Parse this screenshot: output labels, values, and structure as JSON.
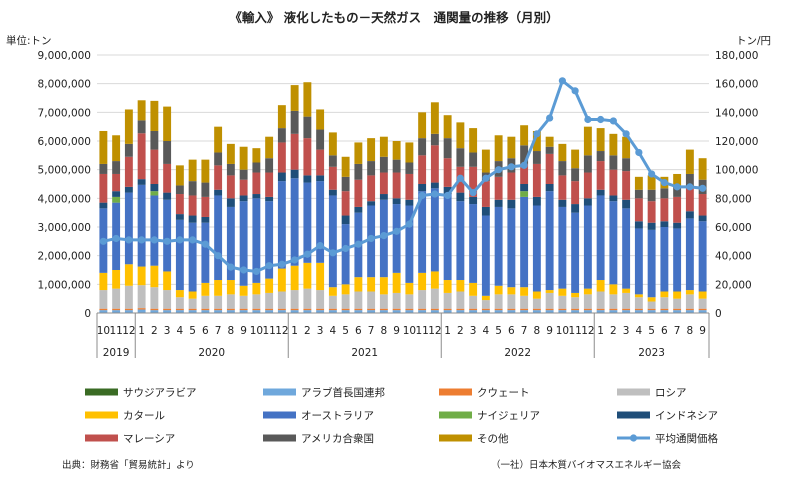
{
  "chart_data": {
    "type": "bar",
    "title": "《輸入》 液化したもの－天然ガス　通関量の推移（月別）",
    "y_left_label": "単位:トン",
    "y_right_label": "トン/円",
    "ylim_left": [
      0,
      9000000
    ],
    "ylim_right": [
      0,
      180000
    ],
    "y_left_ticks": [
      "0",
      "1,000,000",
      "2,000,000",
      "3,000,000",
      "4,000,000",
      "5,000,000",
      "6,000,000",
      "7,000,000",
      "8,000,000",
      "9,000,000"
    ],
    "y_right_ticks": [
      "0",
      "20,000",
      "40,000",
      "60,000",
      "80,000",
      "100,000",
      "120,000",
      "140,000",
      "160,000",
      "180,000"
    ],
    "categories": [
      "2019-10",
      "2019-11",
      "2019-12",
      "2020-01",
      "2020-02",
      "2020-03",
      "2020-04",
      "2020-05",
      "2020-06",
      "2020-07",
      "2020-08",
      "2020-09",
      "2020-10",
      "2020-11",
      "2020-12",
      "2021-01",
      "2021-02",
      "2021-03",
      "2021-04",
      "2021-05",
      "2021-06",
      "2021-07",
      "2021-08",
      "2021-09",
      "2021-10",
      "2021-11",
      "2021-12",
      "2022-01",
      "2022-02",
      "2022-03",
      "2022-04",
      "2022-05",
      "2022-06",
      "2022-07",
      "2022-08",
      "2022-09",
      "2022-10",
      "2022-11",
      "2022-12",
      "2023-01",
      "2023-02",
      "2023-03",
      "2023-04",
      "2023-05",
      "2023-06",
      "2023-07",
      "2023-08",
      "2023-09"
    ],
    "month_labels": [
      "10",
      "11",
      "12",
      "1",
      "2",
      "3",
      "4",
      "5",
      "6",
      "7",
      "8",
      "9",
      "10",
      "11",
      "12",
      "1",
      "2",
      "3",
      "4",
      "5",
      "6",
      "7",
      "8",
      "9",
      "10",
      "11",
      "12",
      "1",
      "2",
      "3",
      "4",
      "5",
      "6",
      "7",
      "8",
      "9",
      "10",
      "11",
      "12",
      "1",
      "2",
      "3",
      "4",
      "5",
      "6",
      "7",
      "8",
      "9"
    ],
    "year_groups": [
      {
        "label": "2019",
        "start": 0,
        "end": 2
      },
      {
        "label": "2020",
        "start": 3,
        "end": 14
      },
      {
        "label": "2021",
        "start": 15,
        "end": 26
      },
      {
        "label": "2022",
        "start": 27,
        "end": 38
      },
      {
        "label": "2023",
        "start": 39,
        "end": 47
      }
    ],
    "series": [
      {
        "name": "サウジアラビア",
        "color": "#3a6b24",
        "axis": "left",
        "values": [
          0,
          0,
          0,
          0,
          0,
          0,
          0,
          0,
          0,
          0,
          0,
          0,
          0,
          0,
          0,
          0,
          0,
          0,
          0,
          0,
          0,
          0,
          0,
          0,
          0,
          0,
          0,
          0,
          0,
          0,
          0,
          0,
          0,
          0,
          0,
          0,
          0,
          0,
          0,
          0,
          0,
          0,
          0,
          0,
          0,
          0,
          0,
          0
        ]
      },
      {
        "name": "アラブ首長国連邦",
        "color": "#6fa8dc",
        "axis": "left",
        "values": [
          100000,
          100000,
          100000,
          120000,
          100000,
          100000,
          100000,
          100000,
          100000,
          100000,
          100000,
          100000,
          100000,
          100000,
          100000,
          100000,
          100000,
          100000,
          100000,
          100000,
          100000,
          100000,
          100000,
          100000,
          100000,
          100000,
          100000,
          100000,
          100000,
          100000,
          100000,
          100000,
          100000,
          100000,
          100000,
          100000,
          100000,
          100000,
          100000,
          100000,
          100000,
          100000,
          100000,
          100000,
          100000,
          100000,
          100000,
          100000
        ]
      },
      {
        "name": "クウェート",
        "color": "#ed7d31",
        "axis": "left",
        "values": [
          50000,
          50000,
          50000,
          50000,
          50000,
          50000,
          50000,
          50000,
          50000,
          50000,
          50000,
          50000,
          50000,
          50000,
          50000,
          50000,
          50000,
          50000,
          50000,
          50000,
          50000,
          50000,
          50000,
          50000,
          50000,
          50000,
          50000,
          50000,
          50000,
          50000,
          50000,
          50000,
          50000,
          50000,
          50000,
          50000,
          50000,
          50000,
          50000,
          50000,
          50000,
          50000,
          50000,
          50000,
          50000,
          50000,
          50000,
          50000
        ]
      },
      {
        "name": "ロシア",
        "color": "#bfbfbf",
        "axis": "left",
        "values": [
          650000,
          700000,
          800000,
          800000,
          750000,
          650000,
          400000,
          350000,
          450000,
          450000,
          500000,
          450000,
          500000,
          550000,
          600000,
          650000,
          700000,
          650000,
          450000,
          500000,
          600000,
          600000,
          500000,
          550000,
          500000,
          650000,
          700000,
          550000,
          600000,
          450000,
          300000,
          500000,
          500000,
          450000,
          350000,
          550000,
          450000,
          400000,
          500000,
          600000,
          500000,
          550000,
          400000,
          250000,
          400000,
          350000,
          500000,
          350000
        ]
      },
      {
        "name": "カタール",
        "color": "#ffc000",
        "axis": "left",
        "values": [
          600000,
          650000,
          750000,
          650000,
          750000,
          650000,
          250000,
          250000,
          450000,
          550000,
          500000,
          350000,
          400000,
          500000,
          800000,
          850000,
          900000,
          950000,
          300000,
          350000,
          500000,
          500000,
          600000,
          700000,
          400000,
          600000,
          600000,
          450000,
          400000,
          450000,
          150000,
          300000,
          250000,
          300000,
          250000,
          100000,
          250000,
          150000,
          200000,
          400000,
          350000,
          150000,
          100000,
          150000,
          200000,
          250000,
          150000,
          250000
        ]
      },
      {
        "name": "オーストラリア",
        "color": "#4472c4",
        "axis": "left",
        "values": [
          2250000,
          2350000,
          2500000,
          2850000,
          2450000,
          2500000,
          2450000,
          2400000,
          2100000,
          2950000,
          2550000,
          2950000,
          2950000,
          2700000,
          3050000,
          3050000,
          2800000,
          2850000,
          3200000,
          2100000,
          2250000,
          2500000,
          2700000,
          2400000,
          2700000,
          2850000,
          2900000,
          3000000,
          2750000,
          2750000,
          2800000,
          2750000,
          2750000,
          3150000,
          3000000,
          3450000,
          2850000,
          2800000,
          2900000,
          2950000,
          2900000,
          2800000,
          2300000,
          2350000,
          2250000,
          2200000,
          2500000,
          2450000
        ]
      },
      {
        "name": "ナイジェリア",
        "color": "#70ad47",
        "axis": "left",
        "values": [
          0,
          200000,
          0,
          0,
          150000,
          0,
          0,
          0,
          0,
          0,
          0,
          0,
          0,
          0,
          0,
          0,
          0,
          0,
          0,
          0,
          0,
          0,
          0,
          0,
          0,
          0,
          0,
          0,
          0,
          0,
          0,
          0,
          0,
          200000,
          0,
          0,
          0,
          0,
          0,
          0,
          0,
          0,
          0,
          0,
          0,
          0,
          0,
          0
        ]
      },
      {
        "name": "インドネシア",
        "color": "#1f4e79",
        "axis": "left",
        "values": [
          200000,
          200000,
          200000,
          200000,
          250000,
          250000,
          200000,
          250000,
          200000,
          200000,
          300000,
          200000,
          150000,
          150000,
          300000,
          300000,
          250000,
          200000,
          200000,
          300000,
          200000,
          150000,
          200000,
          200000,
          200000,
          250000,
          200000,
          250000,
          300000,
          250000,
          300000,
          250000,
          300000,
          250000,
          300000,
          250000,
          250000,
          300000,
          250000,
          200000,
          200000,
          300000,
          250000,
          250000,
          200000,
          200000,
          250000,
          200000
        ]
      },
      {
        "name": "マレーシア",
        "color": "#c0504d",
        "axis": "left",
        "values": [
          1000000,
          600000,
          1050000,
          1600000,
          1200000,
          1000000,
          700000,
          700000,
          700000,
          850000,
          800000,
          550000,
          750000,
          850000,
          1050000,
          1250000,
          1300000,
          900000,
          800000,
          850000,
          950000,
          900000,
          750000,
          900000,
          900000,
          1000000,
          1300000,
          1000000,
          900000,
          1050000,
          900000,
          800000,
          950000,
          700000,
          1150000,
          1050000,
          850000,
          800000,
          900000,
          1000000,
          900000,
          1000000,
          800000,
          750000,
          800000,
          900000,
          850000,
          750000
        ]
      },
      {
        "name": "アメリカ合衆国",
        "color": "#595959",
        "axis": "left",
        "values": [
          350000,
          450000,
          450000,
          450000,
          650000,
          800000,
          300000,
          500000,
          500000,
          450000,
          400000,
          350000,
          350000,
          500000,
          500000,
          800000,
          750000,
          700000,
          400000,
          500000,
          550000,
          500000,
          550000,
          450000,
          400000,
          600000,
          400000,
          700000,
          650000,
          500000,
          300000,
          550000,
          500000,
          650000,
          450000,
          250000,
          500000,
          450000,
          600000,
          350000,
          500000,
          450000,
          300000,
          400000,
          350000,
          400000,
          450000,
          500000
        ]
      },
      {
        "name": "その他",
        "color": "#bf9000",
        "axis": "left",
        "values": [
          1150000,
          900000,
          1200000,
          700000,
          1050000,
          1200000,
          700000,
          750000,
          800000,
          900000,
          700000,
          800000,
          500000,
          750000,
          800000,
          900000,
          1200000,
          700000,
          800000,
          700000,
          750000,
          800000,
          700000,
          650000,
          700000,
          900000,
          1100000,
          800000,
          900000,
          850000,
          800000,
          900000,
          750000,
          700000,
          700000,
          350000,
          600000,
          650000,
          1000000,
          800000,
          750000,
          750000,
          450000,
          500000,
          400000,
          400000,
          850000,
          750000
        ]
      },
      {
        "name": "平均通関価格",
        "color": "#5b9bd5",
        "axis": "right",
        "type": "line",
        "values": [
          50000,
          52000,
          51000,
          51000,
          51000,
          50000,
          51000,
          51000,
          48000,
          40000,
          32000,
          30000,
          29000,
          33000,
          34000,
          37000,
          41000,
          47000,
          42000,
          45000,
          48000,
          52000,
          54000,
          57000,
          62000,
          82000,
          83000,
          82000,
          94000,
          84000,
          94000,
          100000,
          102000,
          103000,
          125000,
          136000,
          162000,
          155000,
          135000,
          135000,
          134000,
          125000,
          112000,
          97000,
          91000,
          88000,
          88000,
          87000
        ]
      }
    ],
    "legend_placement": "bottom",
    "grid": "horizontal",
    "source_left": "出典：財務省「貿易統計」より",
    "source_right": "（一社）日本木質バイオマスエネルギー協会"
  }
}
